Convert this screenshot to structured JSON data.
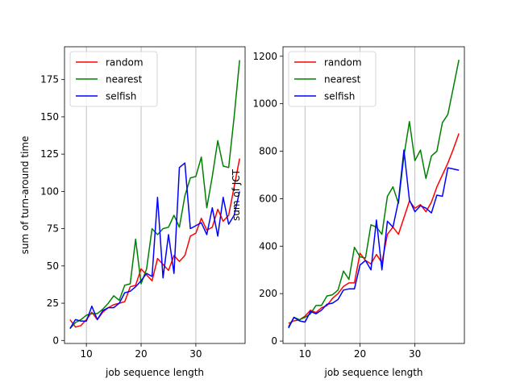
{
  "chart_data": [
    {
      "type": "line",
      "xlabel": "job sequence length",
      "ylabel": "sum of turn-around time",
      "xlim": [
        6,
        39
      ],
      "ylim": [
        -2,
        197
      ],
      "xticks": [
        10,
        20,
        30
      ],
      "yticks": [
        0,
        25,
        50,
        75,
        100,
        125,
        150,
        175
      ],
      "grid": "x",
      "legend": "top-left",
      "x": [
        7,
        8,
        9,
        10,
        11,
        12,
        13,
        14,
        15,
        16,
        17,
        18,
        19,
        20,
        21,
        22,
        23,
        24,
        25,
        26,
        27,
        28,
        29,
        30,
        31,
        32,
        33,
        34,
        35,
        36,
        37,
        38
      ],
      "series": [
        {
          "name": "random",
          "color": "#ff0000",
          "values": [
            14,
            9,
            10,
            14,
            19,
            14,
            19,
            22,
            24,
            25,
            26,
            36,
            37,
            48,
            44,
            40,
            55,
            51,
            47,
            57,
            53,
            57,
            70,
            72,
            82,
            74,
            76,
            88,
            80,
            84,
            103,
            122
          ]
        },
        {
          "name": "nearest",
          "color": "#008000",
          "values": [
            8,
            12,
            14,
            17,
            18,
            18,
            21,
            25,
            30,
            27,
            37,
            38,
            68,
            38,
            48,
            75,
            71,
            75,
            76,
            84,
            76,
            97,
            109,
            110,
            123,
            89,
            110,
            134,
            117,
            116,
            150,
            188
          ]
        },
        {
          "name": "selfish",
          "color": "#0000ff",
          "values": [
            8,
            14,
            13,
            13,
            23,
            14,
            20,
            22,
            22,
            25,
            32,
            33,
            36,
            40,
            45,
            43,
            96,
            42,
            71,
            45,
            116,
            119,
            75,
            77,
            79,
            71,
            89,
            70,
            96,
            78,
            84,
            100
          ]
        }
      ]
    },
    {
      "type": "line",
      "xlabel": "job sequence length",
      "ylabel": "sum of JCT",
      "xlim": [
        6,
        39
      ],
      "ylim": [
        -10,
        1240
      ],
      "xticks": [
        10,
        20,
        30
      ],
      "yticks": [
        0,
        200,
        400,
        600,
        800,
        1000,
        1200
      ],
      "grid": "x",
      "legend": "top-left",
      "x": [
        7,
        8,
        9,
        10,
        11,
        12,
        13,
        14,
        15,
        16,
        17,
        18,
        19,
        20,
        21,
        22,
        23,
        24,
        25,
        26,
        27,
        28,
        29,
        30,
        31,
        32,
        33,
        34,
        35,
        36,
        37,
        38
      ],
      "series": [
        {
          "name": "random",
          "color": "#ff0000",
          "values": [
            75,
            85,
            90,
            105,
            130,
            120,
            140,
            150,
            180,
            200,
            230,
            245,
            245,
            370,
            340,
            325,
            365,
            330,
            450,
            480,
            450,
            520,
            590,
            560,
            575,
            545,
            585,
            650,
            700,
            750,
            810,
            875
          ]
        },
        {
          "name": "nearest",
          "color": "#008000",
          "values": [
            60,
            100,
            90,
            100,
            115,
            150,
            150,
            190,
            195,
            215,
            295,
            260,
            395,
            355,
            350,
            490,
            480,
            450,
            610,
            650,
            580,
            780,
            925,
            760,
            805,
            685,
            780,
            800,
            920,
            955,
            1070,
            1185
          ]
        },
        {
          "name": "selfish",
          "color": "#0000ff",
          "values": [
            55,
            100,
            85,
            80,
            125,
            115,
            130,
            155,
            160,
            175,
            215,
            220,
            220,
            320,
            340,
            300,
            510,
            300,
            505,
            480,
            590,
            805,
            595,
            545,
            570,
            560,
            540,
            615,
            610,
            730,
            725,
            720
          ]
        }
      ]
    }
  ]
}
